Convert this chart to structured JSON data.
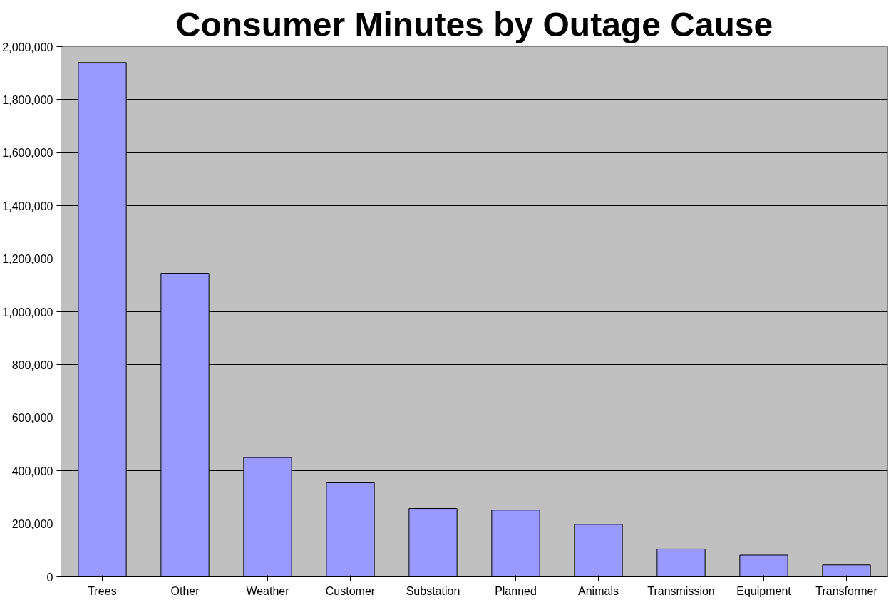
{
  "chart_data": {
    "type": "bar",
    "title": "Consumer Minutes by Outage Cause",
    "categories": [
      "Trees",
      "Other",
      "Weather",
      "Customer",
      "Substation",
      "Planned",
      "Animals",
      "Transmission",
      "Equipment",
      "Transformer"
    ],
    "values": [
      1940000,
      1145000,
      450000,
      355000,
      258000,
      252000,
      198000,
      105000,
      82000,
      45000
    ],
    "color": "#9999ff",
    "ylim": [
      0,
      2000000
    ],
    "yticks": [
      {
        "value": 0,
        "label": "0"
      },
      {
        "value": 200000,
        "label": "200,000"
      },
      {
        "value": 400000,
        "label": "400,000"
      },
      {
        "value": 600000,
        "label": "600,000"
      },
      {
        "value": 800000,
        "label": "800,000"
      },
      {
        "value": 1000000,
        "label": "1,000,000"
      },
      {
        "value": 1200000,
        "label": "1,200,000"
      },
      {
        "value": 1400000,
        "label": "1,400,000"
      },
      {
        "value": 1600000,
        "label": "1,600,000"
      },
      {
        "value": 1800000,
        "label": "1,800,000"
      },
      {
        "value": 2000000,
        "label": "2,000,000"
      }
    ],
    "grid": "y"
  }
}
